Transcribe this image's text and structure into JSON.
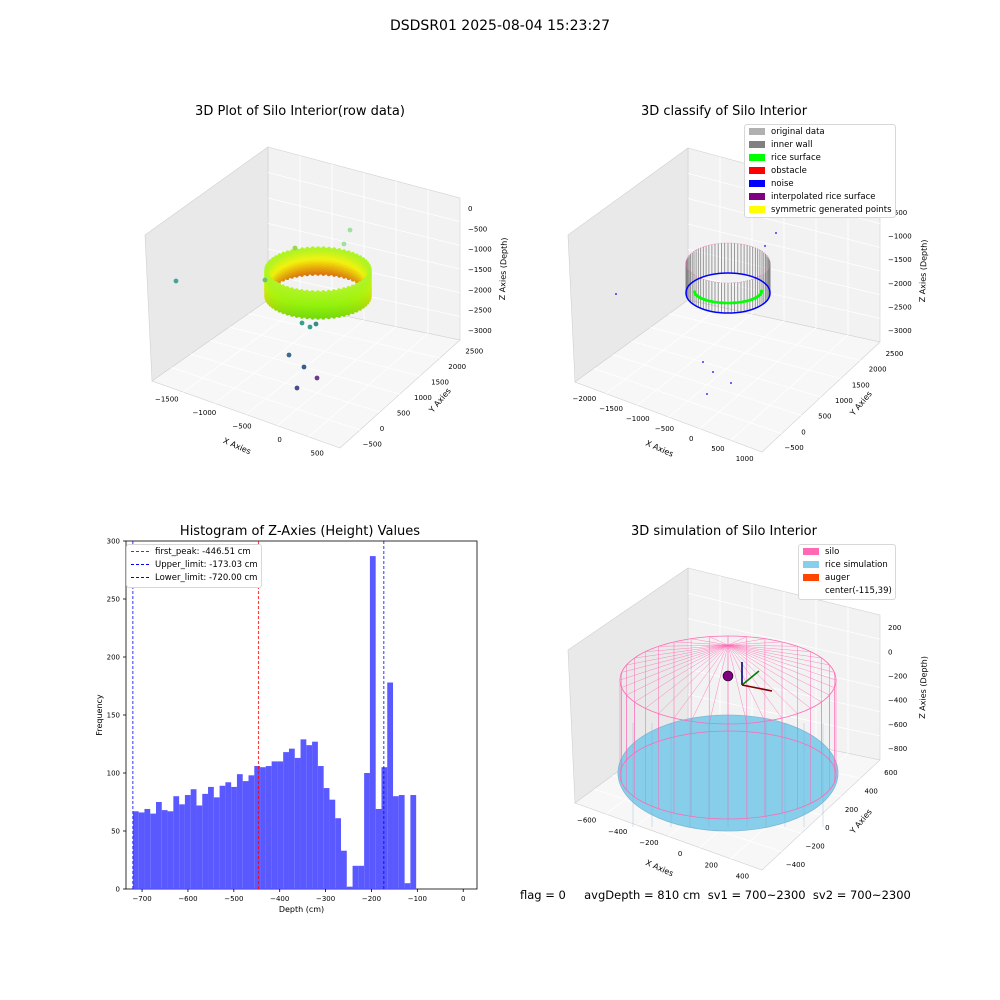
{
  "suptitle": "DSDSR01 2025-08-04 15:23:27",
  "footer": "flag = 0     avgDepth = 810 cm  sv1 = 700~2300  sv2 = 700~2300",
  "colors": {
    "silo": "#ff69b4",
    "rice": "#87ceeb",
    "auger": "#ff4500",
    "original": "#b0b0b0",
    "inner_wall": "#808080",
    "rice_surface": "#00ff00",
    "obstacle": "#ff0000",
    "noise": "#0000ff",
    "interp": "#800080",
    "symmetric": "#ffff00",
    "hist": "#5050ff"
  },
  "chart_data": [
    {
      "type": "scatter",
      "subtype": "3d",
      "title": "3D Plot of Silo Interior(row data)",
      "xlabel": "X Axies",
      "ylabel": "Y Axies",
      "zlabel": "Z Axies (Depth)",
      "x_ticks": [
        "−1500",
        "−1000",
        "−500",
        "0",
        "500"
      ],
      "y_ticks": [
        "−500",
        "0",
        "500",
        "1000",
        "1500",
        "2000",
        "2500"
      ],
      "z_ticks": [
        "0",
        "−500",
        "−1000",
        "−1500",
        "−2000",
        "−2500",
        "−3000"
      ],
      "grid": true
    },
    {
      "type": "scatter",
      "subtype": "3d",
      "title": "3D classify of Silo Interior",
      "xlabel": "X Axies",
      "ylabel": "Y Axies",
      "zlabel": "Z Axies (Depth)",
      "x_ticks": [
        "−2000",
        "−1500",
        "−1000",
        "−500",
        "0",
        "500",
        "1000"
      ],
      "y_ticks": [
        "−500",
        "0",
        "500",
        "1000",
        "1500",
        "2000",
        "2500"
      ],
      "z_ticks": [
        "−500",
        "−1000",
        "−1500",
        "−2000",
        "−2500",
        "−3000"
      ],
      "legend": [
        "original data",
        "inner wall",
        "rice surface",
        "obstacle",
        "noise",
        "interpolated rice surface",
        "symmetric generated points"
      ],
      "legend_position": "upper-right",
      "grid": true
    },
    {
      "type": "bar",
      "subtype": "histogram",
      "title": "Histogram of Z-Axies (Height) Values",
      "xlabel": "Depth (cm)",
      "ylabel": "Frequency",
      "xlim": [
        -735,
        30
      ],
      "ylim": [
        0,
        300
      ],
      "x_ticks": [
        -700,
        -600,
        -500,
        -400,
        -300,
        -200,
        -100,
        0
      ],
      "x_tick_labels": [
        "−700",
        "−600",
        "−500",
        "−400",
        "−300",
        "−200",
        "−100",
        "0"
      ],
      "y_ticks": [
        0,
        50,
        100,
        150,
        200,
        250,
        300
      ],
      "bin_start": -720,
      "bin_width": 12.6,
      "counts": [
        67,
        66,
        69,
        65,
        75,
        68,
        67,
        80,
        73,
        81,
        86,
        72,
        82,
        88,
        79,
        89,
        92,
        88,
        99,
        93,
        98,
        106,
        105,
        106,
        110,
        110,
        118,
        121,
        113,
        129,
        124,
        127,
        106,
        87,
        77,
        61,
        33,
        2,
        20,
        20,
        100,
        287,
        69,
        105,
        178,
        80,
        81,
        5,
        81
      ],
      "lines": [
        {
          "label": "first_peak: -446.51 cm",
          "x": -446.51,
          "color": "#ff0000"
        },
        {
          "label": "Upper_limit: -173.03 cm",
          "x": -173.03,
          "color": "#0000ff"
        },
        {
          "label": "Lower_limit: -720.00 cm",
          "x": -720.0,
          "color": "#0000ff"
        }
      ],
      "legend_position": "upper-left"
    },
    {
      "type": "scatter",
      "subtype": "3d-simulation",
      "title": "3D simulation of Silo Interior",
      "xlabel": "X Axies",
      "ylabel": "Y Axies",
      "zlabel": "Z Axies (Depth)",
      "x_ticks": [
        "−600",
        "−400",
        "−200",
        "0",
        "200",
        "400"
      ],
      "y_ticks": [
        "−400",
        "−200",
        "0",
        "200",
        "400",
        "600"
      ],
      "z_ticks": [
        "200",
        "0",
        "−200",
        "−400",
        "−600",
        "−800"
      ],
      "legend": [
        "silo",
        "rice simulation",
        "auger",
        "center(-115,39)"
      ],
      "legend_position": "upper-right",
      "grid": true
    }
  ]
}
